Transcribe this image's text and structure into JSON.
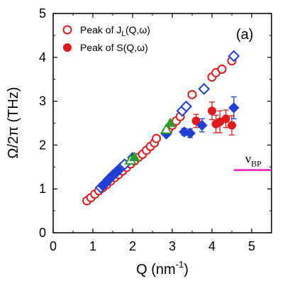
{
  "chart_data": {
    "type": "scatter",
    "panel_label": "(a)",
    "xlabel": "Q (nm",
    "xlabel_sup": "-1",
    "xlabel_end": ")",
    "ylabel": "Ω/2π (THz)",
    "xlim": [
      0,
      5.5
    ],
    "ylim": [
      0,
      5
    ],
    "xticks": [
      0,
      1,
      2,
      3,
      4,
      5
    ],
    "yticks": [
      0,
      1,
      2,
      3,
      4,
      5
    ],
    "grid": false,
    "legend_position": "top-left",
    "legend": [
      {
        "text": "Peak of J",
        "sub": "L",
        "tail": "(Q,ω)",
        "marker": "open-circle",
        "color": "#e31a1c"
      },
      {
        "text": "Peak of S(Q,ω)",
        "marker": "filled-circle",
        "color": "#e31a1c"
      }
    ],
    "annotation": {
      "text": "ν",
      "sub": "BP",
      "y": 1.43,
      "x_range": [
        4.55,
        5.5
      ],
      "color": "#e617c8"
    },
    "colors": {
      "red": "#e31a1c",
      "blue": "#1f3fd6",
      "green": "#2e9a2e",
      "magenta": "#e617c8"
    },
    "series": [
      {
        "name": "Peak of J_L(Q,ω)",
        "marker": "open-circle",
        "color": "#e31a1c",
        "points": [
          [
            0.85,
            0.73
          ],
          [
            0.95,
            0.8
          ],
          [
            1.05,
            0.88
          ],
          [
            1.15,
            0.96
          ],
          [
            1.25,
            1.03
          ],
          [
            1.35,
            1.1
          ],
          [
            1.45,
            1.18
          ],
          [
            1.55,
            1.26
          ],
          [
            1.65,
            1.33
          ],
          [
            1.75,
            1.41
          ],
          [
            1.85,
            1.49
          ],
          [
            1.95,
            1.57
          ],
          [
            2.05,
            1.64
          ],
          [
            2.15,
            1.72
          ],
          [
            2.25,
            1.79
          ],
          [
            2.35,
            1.88
          ],
          [
            2.45,
            1.97
          ],
          [
            2.55,
            2.05
          ],
          [
            2.6,
            2.15
          ],
          [
            2.9,
            2.35
          ],
          [
            3.0,
            2.45
          ],
          [
            3.1,
            2.55
          ],
          [
            3.2,
            2.65
          ],
          [
            3.5,
            3.15
          ],
          [
            4.0,
            3.55
          ],
          [
            4.1,
            3.65
          ],
          [
            4.25,
            3.73
          ],
          [
            4.5,
            3.92
          ]
        ]
      },
      {
        "name": "Peak of S(Q,ω)",
        "marker": "filled-circle",
        "color": "#e31a1c",
        "points": [
          [
            3.6,
            2.55
          ],
          [
            4.0,
            2.78
          ],
          [
            4.1,
            2.48
          ],
          [
            4.2,
            2.53
          ],
          [
            4.35,
            2.6
          ],
          [
            4.5,
            2.45
          ]
        ],
        "errors": [
          0.15,
          0.2,
          0.2,
          0.25,
          0.2,
          0.22
        ]
      },
      {
        "name": "",
        "marker": "open-diamond",
        "color": "#1f3fd6",
        "points": [
          [
            1.2,
            1.03
          ],
          [
            1.3,
            1.12
          ],
          [
            1.4,
            1.22
          ],
          [
            1.5,
            1.31
          ],
          [
            1.6,
            1.39
          ],
          [
            1.7,
            1.48
          ],
          [
            1.8,
            1.56
          ],
          [
            3.25,
            2.78
          ],
          [
            3.35,
            2.88
          ],
          [
            3.8,
            3.28
          ],
          [
            4.55,
            4.03
          ]
        ]
      },
      {
        "name": "",
        "marker": "filled-diamond",
        "color": "#1f3fd6",
        "points": [
          [
            1.25,
            1.07
          ],
          [
            1.35,
            1.15
          ],
          [
            1.45,
            1.25
          ],
          [
            1.55,
            1.34
          ],
          [
            1.65,
            1.43
          ],
          [
            2.0,
            1.72
          ],
          [
            2.85,
            2.25
          ],
          [
            3.3,
            2.3
          ],
          [
            3.45,
            2.27
          ],
          [
            3.75,
            2.45
          ],
          [
            4.55,
            2.85
          ]
        ],
        "errors": [
          0,
          0,
          0,
          0,
          0,
          0,
          0,
          0.08,
          0.1,
          0.15,
          0.25
        ]
      },
      {
        "name": "",
        "marker": "open-triangle",
        "color": "#2e9a2e",
        "points": [
          [
            1.95,
            1.65
          ],
          [
            2.85,
            2.35
          ]
        ]
      },
      {
        "name": "",
        "marker": "filled-triangle",
        "color": "#2e9a2e",
        "points": [
          [
            2.05,
            1.72
          ],
          [
            2.95,
            2.5
          ]
        ]
      }
    ]
  }
}
